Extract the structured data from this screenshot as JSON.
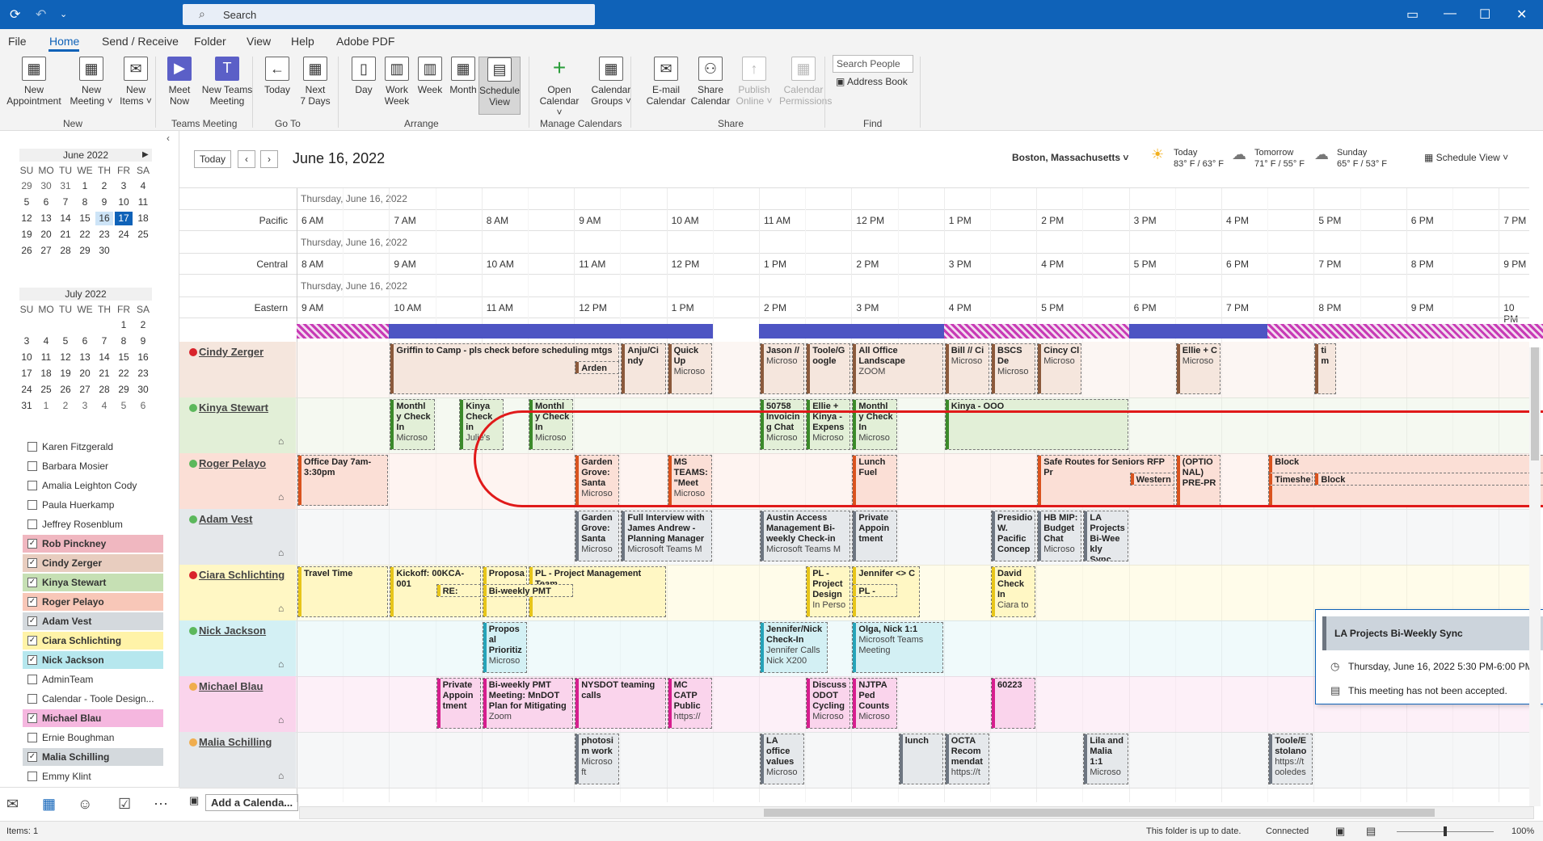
{
  "titlebar": {
    "search_placeholder": "Search"
  },
  "menu": [
    "File",
    "Home",
    "Send / Receive",
    "Folder",
    "View",
    "Help",
    "Adobe PDF"
  ],
  "ribbon": {
    "buttons": [
      {
        "id": "new-appointment",
        "line1": "New",
        "line2": "Appointment",
        "icon": "calendar-new-icon"
      },
      {
        "id": "new-meeting",
        "line1": "New",
        "line2": "Meeting ˅",
        "icon": "meeting-icon"
      },
      {
        "id": "new-items",
        "line1": "New",
        "line2": "Items ˅",
        "icon": "items-icon"
      },
      {
        "id": "meet-now",
        "line1": "Meet",
        "line2": "Now",
        "icon": "video-icon"
      },
      {
        "id": "new-teams-meeting",
        "line1": "New Teams",
        "line2": "Meeting",
        "icon": "teams-icon"
      },
      {
        "id": "today",
        "line1": "Today",
        "line2": "",
        "icon": "today-icon"
      },
      {
        "id": "next-7-days",
        "line1": "Next",
        "line2": "7 Days",
        "icon": "next7-icon"
      },
      {
        "id": "day",
        "line1": "Day",
        "line2": "",
        "icon": "day-icon"
      },
      {
        "id": "work-week",
        "line1": "Work",
        "line2": "Week",
        "icon": "workweek-icon"
      },
      {
        "id": "week",
        "line1": "Week",
        "line2": "",
        "icon": "week-icon"
      },
      {
        "id": "month",
        "line1": "Month",
        "line2": "",
        "icon": "month-icon"
      },
      {
        "id": "schedule-view",
        "line1": "Schedule",
        "line2": "View",
        "icon": "schedule-icon"
      },
      {
        "id": "open-calendar",
        "line1": "Open",
        "line2": "Calendar ˅",
        "icon": "plus-icon"
      },
      {
        "id": "calendar-groups",
        "line1": "Calendar",
        "line2": "Groups ˅",
        "icon": "groups-icon"
      },
      {
        "id": "email-calendar",
        "line1": "E-mail",
        "line2": "Calendar",
        "icon": "mail-icon"
      },
      {
        "id": "share-calendar",
        "line1": "Share",
        "line2": "Calendar",
        "icon": "share-icon"
      },
      {
        "id": "publish-online",
        "line1": "Publish",
        "line2": "Online ˅",
        "icon": "publish-icon"
      },
      {
        "id": "calendar-permissions",
        "line1": "Calendar",
        "line2": "Permissions",
        "icon": "permissions-icon"
      }
    ],
    "groups": [
      "New",
      "Teams Meeting",
      "Go To",
      "Arrange",
      "Manage Calendars",
      "Share",
      "Find"
    ],
    "search_people": "Search People",
    "address_book": "Address Book"
  },
  "minical": {
    "june": {
      "title": "June 2022",
      "dow": [
        "SU",
        "MO",
        "TU",
        "WE",
        "TH",
        "FR",
        "SA"
      ],
      "days": [
        "29",
        "30",
        "31",
        "1",
        "2",
        "3",
        "4",
        "5",
        "6",
        "7",
        "8",
        "9",
        "10",
        "11",
        "12",
        "13",
        "14",
        "15",
        "16",
        "17",
        "18",
        "19",
        "20",
        "21",
        "22",
        "23",
        "24",
        "25",
        "26",
        "27",
        "28",
        "29",
        "30"
      ]
    },
    "july": {
      "title": "July 2022",
      "dow": [
        "SU",
        "MO",
        "TU",
        "WE",
        "TH",
        "FR",
        "SA"
      ],
      "days": [
        "1",
        "2",
        "3",
        "4",
        "5",
        "6",
        "7",
        "8",
        "9",
        "10",
        "11",
        "12",
        "13",
        "14",
        "15",
        "16",
        "17",
        "18",
        "19",
        "20",
        "21",
        "22",
        "23",
        "24",
        "25",
        "26",
        "27",
        "28",
        "29",
        "30",
        "31",
        "1",
        "2",
        "3",
        "4",
        "5",
        "6"
      ]
    }
  },
  "calendars": [
    {
      "name": "Karen Fitzgerald",
      "checked": false,
      "color": "#ffffff"
    },
    {
      "name": "Barbara Mosier",
      "checked": false,
      "color": "#ffffff"
    },
    {
      "name": "Amalia Leighton Cody",
      "checked": false,
      "color": "#ffffff"
    },
    {
      "name": "Paula Huerkamp",
      "checked": false,
      "color": "#ffffff"
    },
    {
      "name": "Jeffrey Rosenblum",
      "checked": false,
      "color": "#ffffff"
    },
    {
      "name": "Rob Pinckney",
      "checked": true,
      "color": "#f0b7c0"
    },
    {
      "name": "Cindy Zerger",
      "checked": true,
      "color": "#e8cdbf"
    },
    {
      "name": "Kinya Stewart",
      "checked": true,
      "color": "#c6e0b4"
    },
    {
      "name": "Roger Pelayo",
      "checked": true,
      "color": "#f8c7b8"
    },
    {
      "name": "Adam Vest",
      "checked": true,
      "color": "#d4d9dd"
    },
    {
      "name": "Ciara Schlichting",
      "checked": true,
      "color": "#fff3a8"
    },
    {
      "name": "Nick Jackson",
      "checked": true,
      "color": "#b6e7ee"
    },
    {
      "name": "AdminTeam",
      "checked": false,
      "color": "#ffffff"
    },
    {
      "name": "Calendar - Toole Design...",
      "checked": false,
      "color": "#ffffff"
    },
    {
      "name": "Michael Blau",
      "checked": true,
      "color": "#f5b7df"
    },
    {
      "name": "Ernie Boughman",
      "checked": false,
      "color": "#ffffff"
    },
    {
      "name": "Malia Schilling",
      "checked": true,
      "color": "#d4d9dd"
    },
    {
      "name": "Emmy Klint",
      "checked": false,
      "color": "#ffffff"
    }
  ],
  "main": {
    "today_btn": "Today",
    "date_title": "June 16, 2022",
    "location": "Boston, Massachusetts ˅",
    "weather": [
      {
        "day": "Today",
        "temp": "83° F / 63° F",
        "icon": "sun-cloud-icon"
      },
      {
        "day": "Tomorrow",
        "temp": "71° F / 55° F",
        "icon": "cloud-icon"
      },
      {
        "day": "Sunday",
        "temp": "65° F / 53° F",
        "icon": "cloud-icon"
      }
    ],
    "view_select": "Schedule View ˅",
    "timezones": [
      {
        "label": "Pacific",
        "date": "Thursday, June 16, 2022",
        "hours": [
          "6 AM",
          "7 AM",
          "8 AM",
          "9 AM",
          "10 AM",
          "11 AM",
          "12 PM",
          "1 PM",
          "2 PM",
          "3 PM",
          "4 PM",
          "5 PM",
          "6 PM",
          "7 PM"
        ]
      },
      {
        "label": "Central",
        "date": "Thursday, June 16, 2022",
        "hours": [
          "8 AM",
          "9 AM",
          "10 AM",
          "11 AM",
          "12 PM",
          "1 PM",
          "2 PM",
          "3 PM",
          "4 PM",
          "5 PM",
          "6 PM",
          "7 PM",
          "8 PM",
          "9 PM"
        ]
      },
      {
        "label": "Eastern",
        "date": "Thursday, June 16, 2022",
        "hours": [
          "9 AM",
          "10 AM",
          "11 AM",
          "12 PM",
          "1 PM",
          "2 PM",
          "3 PM",
          "4 PM",
          "5 PM",
          "6 PM",
          "7 PM",
          "8 PM",
          "9 PM",
          "10 PM"
        ]
      }
    ],
    "add_calendar": "Add a Calenda..."
  },
  "people": [
    {
      "name": "Cindy Zerger",
      "dot": "#d9232b",
      "bg": "#f5e6dd",
      "bar": "#8b5a3c"
    },
    {
      "name": "Kinya Stewart",
      "dot": "#5cb85c",
      "bg": "#e2efd7",
      "bar": "#3b8a2a"
    },
    {
      "name": "Roger Pelayo",
      "dot": "#5cb85c",
      "bg": "#fbdfd6",
      "bar": "#d9531e"
    },
    {
      "name": "Adam Vest",
      "dot": "#5cb85c",
      "bg": "#e5e8eb",
      "bar": "#6d7580"
    },
    {
      "name": "Ciara Schlichting",
      "dot": "#d9232b",
      "bg": "#fff7c4",
      "bar": "#e7c51a"
    },
    {
      "name": "Nick Jackson",
      "dot": "#5cb85c",
      "bg": "#d3f0f4",
      "bar": "#26a3b8"
    },
    {
      "name": "Michael Blau",
      "dot": "#f0ad4e",
      "bg": "#fad4ec",
      "bar": "#d61e8e"
    },
    {
      "name": "Malia Schilling",
      "dot": "#f0ad4e",
      "bg": "#e5e8eb",
      "bar": "#6d7580"
    }
  ],
  "events": [
    {
      "p": 0,
      "s": 10.0,
      "e": 12.5,
      "r": 0,
      "t": "Griffin to Camp - pls check before scheduling mtgs",
      "sub": ""
    },
    {
      "p": 0,
      "s": 12.0,
      "e": 12.5,
      "r": 1,
      "t": "Arden W",
      "sub": ""
    },
    {
      "p": 0,
      "s": 12.5,
      "e": 13.0,
      "r": 0,
      "t": "Anju/Ci ndy",
      "sub": ""
    },
    {
      "p": 0,
      "s": 13.0,
      "e": 13.5,
      "r": 0,
      "t": "Quick Up",
      "sub": "Microso"
    },
    {
      "p": 0,
      "s": 14.0,
      "e": 14.5,
      "r": 0,
      "t": "Jason //",
      "sub": "Microso"
    },
    {
      "p": 0,
      "s": 14.5,
      "e": 15.0,
      "r": 0,
      "t": "Toole/G oogle",
      "sub": ""
    },
    {
      "p": 0,
      "s": 15.0,
      "e": 16.0,
      "r": 0,
      "t": "All Office Landscape",
      "sub": "ZOOM"
    },
    {
      "p": 0,
      "s": 16.0,
      "e": 16.5,
      "r": 0,
      "t": "Bill // Ci",
      "sub": "Microso"
    },
    {
      "p": 0,
      "s": 16.5,
      "e": 17.0,
      "r": 0,
      "t": "BSCS De",
      "sub": "Microso"
    },
    {
      "p": 0,
      "s": 17.0,
      "e": 17.5,
      "r": 0,
      "t": "Cincy Cl",
      "sub": "Microso"
    },
    {
      "p": 0,
      "s": 18.5,
      "e": 19.0,
      "r": 0,
      "t": "Ellie + C",
      "sub": "Microso"
    },
    {
      "p": 0,
      "s": 20.0,
      "e": 20.25,
      "r": 0,
      "t": "ti m",
      "sub": ""
    },
    {
      "p": 1,
      "s": 10.0,
      "e": 10.5,
      "r": 0,
      "t": "Monthl y Check In",
      "sub": "Microso"
    },
    {
      "p": 1,
      "s": 10.75,
      "e": 11.25,
      "r": 0,
      "t": "Kinya Check in",
      "sub": "Julie's"
    },
    {
      "p": 1,
      "s": 11.5,
      "e": 12.0,
      "r": 0,
      "t": "Monthl y Check In",
      "sub": "Microso"
    },
    {
      "p": 1,
      "s": 14.0,
      "e": 14.5,
      "r": 0,
      "t": "50758 Invoicin g Chat",
      "sub": "Microso"
    },
    {
      "p": 1,
      "s": 14.5,
      "e": 15.0,
      "r": 0,
      "t": "Ellie + Kinya - Expens",
      "sub": "Microso"
    },
    {
      "p": 1,
      "s": 15.0,
      "e": 15.5,
      "r": 0,
      "t": "Monthl y Check In",
      "sub": "Microso"
    },
    {
      "p": 1,
      "s": 16.0,
      "e": 18.0,
      "r": 0,
      "t": "Kinya - OOO",
      "sub": ""
    },
    {
      "p": 2,
      "s": 9.0,
      "e": 10.0,
      "r": 0,
      "t": "Office Day 7am-3:30pm",
      "sub": ""
    },
    {
      "p": 2,
      "s": 12.0,
      "e": 12.5,
      "r": 0,
      "t": "Garden Grove: Santa",
      "sub": "Microso"
    },
    {
      "p": 2,
      "s": 13.0,
      "e": 13.5,
      "r": 0,
      "t": "MS TEAMS: \"Meet",
      "sub": "Microso"
    },
    {
      "p": 2,
      "s": 15.0,
      "e": 15.5,
      "r": 0,
      "t": "Lunch Fuel",
      "sub": ""
    },
    {
      "p": 2,
      "s": 17.0,
      "e": 18.5,
      "r": 0,
      "t": "Safe Routes for Seniors RFP Pr",
      "sub": ""
    },
    {
      "p": 2,
      "s": 18.0,
      "e": 18.5,
      "r": 1,
      "t": "Western",
      "sub": ""
    },
    {
      "p": 2,
      "s": 18.5,
      "e": 19.0,
      "r": 0,
      "t": "(OPTIO NAL) PRE-PR",
      "sub": ""
    },
    {
      "p": 2,
      "s": 19.5,
      "e": 22.75,
      "r": 0,
      "t": "Block",
      "sub": ""
    },
    {
      "p": 2,
      "s": 19.5,
      "e": 20.0,
      "r": 1,
      "t": "Timeshe",
      "sub": ""
    },
    {
      "p": 2,
      "s": 20.0,
      "e": 22.75,
      "r": 1,
      "t": "Block",
      "sub": ""
    },
    {
      "p": 3,
      "s": 12.0,
      "e": 12.5,
      "r": 0,
      "t": "Garden Grove: Santa",
      "sub": "Microso"
    },
    {
      "p": 3,
      "s": 12.5,
      "e": 13.5,
      "r": 0,
      "t": "Full Interview with James Andrew - Planning Manager",
      "sub": "Microsoft Teams M"
    },
    {
      "p": 3,
      "s": 14.0,
      "e": 15.0,
      "r": 0,
      "t": "Austin Access Management Bi-weekly Check-in",
      "sub": "Microsoft Teams M"
    },
    {
      "p": 3,
      "s": 15.0,
      "e": 15.5,
      "r": 0,
      "t": "Private Appoin tment",
      "sub": ""
    },
    {
      "p": 3,
      "s": 16.5,
      "e": 17.0,
      "r": 0,
      "t": "Presidio W. Pacific Concep",
      "sub": ""
    },
    {
      "p": 3,
      "s": 17.0,
      "e": 17.5,
      "r": 0,
      "t": "HB MIP: Budget Chat",
      "sub": "Microso"
    },
    {
      "p": 3,
      "s": 17.5,
      "e": 18.0,
      "r": 0,
      "t": "LA Projects Bi-Wee kly Sync",
      "sub": ""
    },
    {
      "p": 4,
      "s": 9.0,
      "e": 10.0,
      "r": 0,
      "t": "Travel Time",
      "sub": ""
    },
    {
      "p": 4,
      "s": 10.0,
      "e": 11.0,
      "r": 0,
      "t": "Kickoff: 00KCA-001",
      "sub": ""
    },
    {
      "p": 4,
      "s": 10.5,
      "e": 11.0,
      "r": 1,
      "t": "RE: APB",
      "sub": ""
    },
    {
      "p": 4,
      "s": 11.0,
      "e": 11.5,
      "r": 0,
      "t": "Proposa",
      "sub": ""
    },
    {
      "p": 4,
      "s": 11.5,
      "e": 13.0,
      "r": 0,
      "t": "PL - Project Management Team",
      "sub": ""
    },
    {
      "p": 4,
      "s": 11.0,
      "e": 12.0,
      "r": 1,
      "t": "Bi-weekly PMT Mee",
      "sub": ""
    },
    {
      "p": 4,
      "s": 14.5,
      "e": 15.0,
      "r": 0,
      "t": "PL - Project Design",
      "sub": "In Perso"
    },
    {
      "p": 4,
      "s": 15.0,
      "e": 15.75,
      "r": 0,
      "t": "Jennifer <> C",
      "sub": ""
    },
    {
      "p": 4,
      "s": 15.0,
      "e": 15.5,
      "r": 1,
      "t": "PL - Proj",
      "sub": ""
    },
    {
      "p": 4,
      "s": 16.5,
      "e": 17.0,
      "r": 0,
      "t": "David Check In",
      "sub": "Ciara to"
    },
    {
      "p": 5,
      "s": 11.0,
      "e": 11.5,
      "r": 0,
      "t": "Propos al Prioritiz",
      "sub": "Microso"
    },
    {
      "p": 5,
      "s": 14.0,
      "e": 14.75,
      "r": 0,
      "t": "Jennifer/Nick Check-In",
      "sub": "Jennifer Calls Nick X200"
    },
    {
      "p": 5,
      "s": 15.0,
      "e": 16.0,
      "r": 0,
      "t": "Olga, Nick 1:1",
      "sub": "Microsoft Teams Meeting"
    },
    {
      "p": 6,
      "s": 10.5,
      "e": 11.0,
      "r": 0,
      "t": "Private Appoin tment",
      "sub": ""
    },
    {
      "p": 6,
      "s": 11.0,
      "e": 12.0,
      "r": 0,
      "t": "Bi-weekly PMT Meeting: MnDOT Plan for Mitigating",
      "sub": "Zoom"
    },
    {
      "p": 6,
      "s": 12.0,
      "e": 13.0,
      "r": 0,
      "t": "NYSDOT teaming calls",
      "sub": ""
    },
    {
      "p": 6,
      "s": 13.0,
      "e": 13.5,
      "r": 0,
      "t": "MC CATP Public",
      "sub": "https://"
    },
    {
      "p": 6,
      "s": 14.5,
      "e": 15.0,
      "r": 0,
      "t": "Discuss ODOT Cycling",
      "sub": "Microso"
    },
    {
      "p": 6,
      "s": 15.0,
      "e": 15.5,
      "r": 0,
      "t": "NJTPA Ped Counts",
      "sub": "Microso"
    },
    {
      "p": 6,
      "s": 16.5,
      "e": 17.0,
      "r": 0,
      "t": "60223",
      "sub": ""
    },
    {
      "p": 7,
      "s": 12.0,
      "e": 12.5,
      "r": 0,
      "t": "photosi m work",
      "sub": "Microso ft"
    },
    {
      "p": 7,
      "s": 14.0,
      "e": 14.5,
      "r": 0,
      "t": "LA office values",
      "sub": "Microso"
    },
    {
      "p": 7,
      "s": 15.5,
      "e": 16.0,
      "r": 0,
      "t": "lunch",
      "sub": ""
    },
    {
      "p": 7,
      "s": 16.0,
      "e": 16.5,
      "r": 0,
      "t": "OCTA Recom mendat",
      "sub": "https://t"
    },
    {
      "p": 7,
      "s": 17.5,
      "e": 18.0,
      "r": 0,
      "t": "Lila and Malia 1:1",
      "sub": "Microso"
    },
    {
      "p": 7,
      "s": 19.5,
      "e": 20.0,
      "r": 0,
      "t": "Toole/E stolano",
      "sub": "https://t ooledes"
    }
  ],
  "freebusy": [
    {
      "s": 9.0,
      "e": 10.0,
      "kind": "oof"
    },
    {
      "s": 10.0,
      "e": 13.5,
      "kind": "busy"
    },
    {
      "s": 14.0,
      "e": 16.0,
      "kind": "busy"
    },
    {
      "s": 16.0,
      "e": 18.0,
      "kind": "oof"
    },
    {
      "s": 18.0,
      "e": 19.5,
      "kind": "busy"
    },
    {
      "s": 19.5,
      "e": 22.75,
      "kind": "oof"
    }
  ],
  "popup": {
    "title": "LA Projects Bi-Weekly Sync",
    "time": "Thursday, June 16, 2022 5:30 PM-6:00 PM",
    "status": "This meeting has not been accepted."
  },
  "status": {
    "items": "Items: 1",
    "folder": "This folder is up to date.",
    "connected": "Connected",
    "zoom": "100%"
  }
}
